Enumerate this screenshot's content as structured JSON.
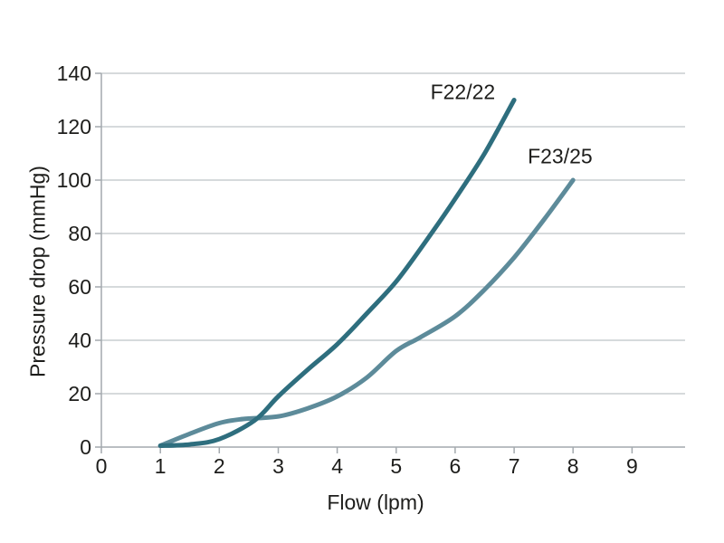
{
  "chart_data": {
    "type": "line",
    "xlabel": "Flow (lpm)",
    "ylabel": "Pressure drop (mmHg)",
    "xlim": [
      0,
      9.9
    ],
    "ylim": [
      0,
      140
    ],
    "x_ticks": [
      0,
      1,
      2,
      3,
      4,
      5,
      6,
      7,
      8,
      9
    ],
    "y_ticks": [
      0,
      20,
      40,
      60,
      80,
      100,
      120,
      140
    ],
    "grid": "horizontal-only",
    "legend_position": "inline-curve-labels",
    "background_color": "#ffffff",
    "grid_color": "#c8ced1",
    "axis_color": "#a3a9ae",
    "text_color": "#1d1d1b",
    "series": [
      {
        "name": "F22/22",
        "label": "F22/22",
        "color": "#2e6e7e",
        "label_pos": [
          6.13,
          133
        ],
        "points": [
          [
            1,
            0.5
          ],
          [
            1.5,
            1
          ],
          [
            2,
            3
          ],
          [
            2.6,
            10
          ],
          [
            3,
            19
          ],
          [
            3.5,
            29
          ],
          [
            4,
            38.5
          ],
          [
            4.5,
            50
          ],
          [
            5,
            62
          ],
          [
            5.5,
            77
          ],
          [
            6,
            93
          ],
          [
            6.5,
            110
          ],
          [
            7,
            130
          ]
        ]
      },
      {
        "name": "F23/25",
        "label": "F23/25",
        "color": "#5d8b9a",
        "label_pos": [
          7.78,
          109
        ],
        "points": [
          [
            1,
            0.5
          ],
          [
            1.5,
            5
          ],
          [
            2,
            9
          ],
          [
            2.4,
            10.5
          ],
          [
            3,
            11.5
          ],
          [
            3.5,
            14.5
          ],
          [
            4,
            19
          ],
          [
            4.5,
            26
          ],
          [
            5,
            36
          ],
          [
            5.4,
            41
          ],
          [
            6,
            49
          ],
          [
            6.5,
            59
          ],
          [
            7,
            71
          ],
          [
            7.5,
            85
          ],
          [
            8,
            100
          ]
        ]
      }
    ]
  }
}
